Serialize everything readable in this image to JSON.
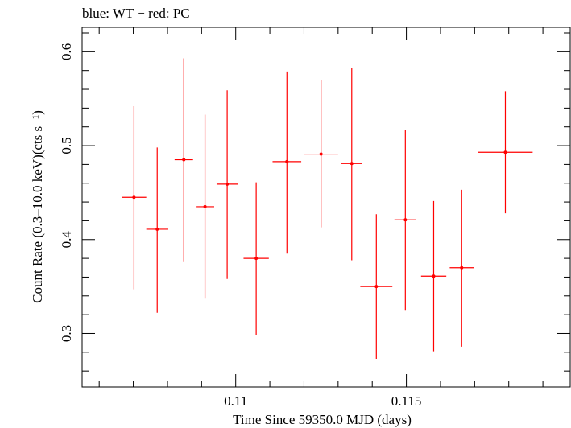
{
  "chart_data": {
    "type": "scatter",
    "title": "blue: WT − red: PC",
    "xlabel": "Time Since 59350.0 MJD (days)",
    "ylabel": "Count Rate (0.3–10.0 keV)(cts s⁻¹)",
    "xlim": [
      0.1055,
      0.1198
    ],
    "ylim": [
      0.243,
      0.626
    ],
    "x_major_ticks": [
      0.11,
      0.115
    ],
    "x_tick_labels": [
      "0.11",
      "0.115"
    ],
    "y_major_ticks": [
      0.3,
      0.4,
      0.5,
      0.6
    ],
    "y_tick_labels": [
      "0.3",
      "0.4",
      "0.5",
      "0.6"
    ],
    "grid": false,
    "series": [
      {
        "name": "red: PC",
        "color": "#ff0000",
        "points": [
          {
            "x": 0.10702,
            "xerr": 0.00036,
            "y": 0.445,
            "ylo": 0.347,
            "yhi": 0.542
          },
          {
            "x": 0.1077,
            "xerr": 0.00032,
            "y": 0.411,
            "ylo": 0.322,
            "yhi": 0.498
          },
          {
            "x": 0.10848,
            "xerr": 0.00027,
            "y": 0.485,
            "ylo": 0.376,
            "yhi": 0.593
          },
          {
            "x": 0.1091,
            "xerr": 0.00027,
            "y": 0.435,
            "ylo": 0.337,
            "yhi": 0.533
          },
          {
            "x": 0.10975,
            "xerr": 0.00031,
            "y": 0.459,
            "ylo": 0.358,
            "yhi": 0.559
          },
          {
            "x": 0.1106,
            "xerr": 0.00037,
            "y": 0.38,
            "ylo": 0.298,
            "yhi": 0.461
          },
          {
            "x": 0.1115,
            "xerr": 0.00042,
            "y": 0.483,
            "ylo": 0.385,
            "yhi": 0.579
          },
          {
            "x": 0.1125,
            "xerr": 0.0005,
            "y": 0.491,
            "ylo": 0.413,
            "yhi": 0.57
          },
          {
            "x": 0.1134,
            "xerr": 0.00031,
            "y": 0.481,
            "ylo": 0.378,
            "yhi": 0.583
          },
          {
            "x": 0.11412,
            "xerr": 0.00047,
            "y": 0.35,
            "ylo": 0.273,
            "yhi": 0.427
          },
          {
            "x": 0.11497,
            "xerr": 0.00032,
            "y": 0.421,
            "ylo": 0.325,
            "yhi": 0.517
          },
          {
            "x": 0.1158,
            "xerr": 0.00037,
            "y": 0.361,
            "ylo": 0.281,
            "yhi": 0.441
          },
          {
            "x": 0.11662,
            "xerr": 0.00035,
            "y": 0.37,
            "ylo": 0.286,
            "yhi": 0.453
          },
          {
            "x": 0.1179,
            "xerr": 0.0008,
            "y": 0.493,
            "ylo": 0.428,
            "yhi": 0.558
          }
        ]
      }
    ]
  }
}
